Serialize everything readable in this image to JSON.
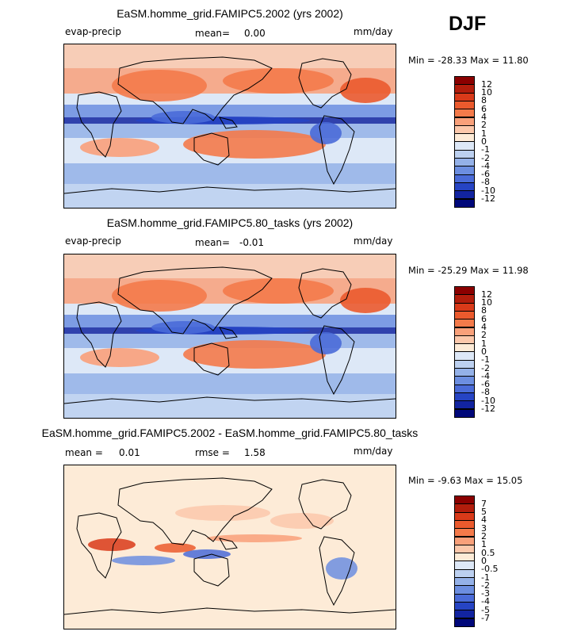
{
  "season": "DJF",
  "panels": [
    {
      "title": "EaSM.homme_grid.FAMIPC5.2002 (yrs 2002)",
      "left_label": "evap-precip",
      "mean_label": "mean=",
      "mean_value": "0.00",
      "units": "mm/day",
      "min_label": "Min =",
      "min_value": "-28.33",
      "max_label": "Max =",
      "max_value": "11.80",
      "colorbar_labels": [
        "12",
        "10",
        "8",
        "6",
        "4",
        "2",
        "1",
        "0",
        "-1",
        "-2",
        "-4",
        "-6",
        "-8",
        "-10",
        "-12"
      ],
      "colorbar_colors": [
        "#8b0000",
        "#b21d0c",
        "#d93a19",
        "#eb5a2d",
        "#f47a4a",
        "#f9a07a",
        "#fcc8ab",
        "#fdebd7",
        "#dde8f7",
        "#bcd0f0",
        "#94b1e8",
        "#6c8ee0",
        "#4a6bd8",
        "#2644c4",
        "#1224a0",
        "#00087a"
      ]
    },
    {
      "title": "EaSM.homme_grid.FAMIPC5.80_tasks (yrs 2002)",
      "left_label": "evap-precip",
      "mean_label": "mean=",
      "mean_value": "-0.01",
      "units": "mm/day",
      "min_label": "Min =",
      "min_value": "-25.29",
      "max_label": "Max =",
      "max_value": "11.98",
      "colorbar_labels": [
        "12",
        "10",
        "8",
        "6",
        "4",
        "2",
        "1",
        "0",
        "-1",
        "-2",
        "-4",
        "-6",
        "-8",
        "-10",
        "-12"
      ],
      "colorbar_colors": [
        "#8b0000",
        "#b21d0c",
        "#d93a19",
        "#eb5a2d",
        "#f47a4a",
        "#f9a07a",
        "#fcc8ab",
        "#fdebd7",
        "#dde8f7",
        "#bcd0f0",
        "#94b1e8",
        "#6c8ee0",
        "#4a6bd8",
        "#2644c4",
        "#1224a0",
        "#00087a"
      ]
    },
    {
      "title": "EaSM.homme_grid.FAMIPC5.2002 - EaSM.homme_grid.FAMIPC5.80_tasks",
      "mean_label": "mean =",
      "mean_value": "0.01",
      "rmse_label": "rmse =",
      "rmse_value": "1.58",
      "units": "mm/day",
      "min_label": "Min =",
      "min_value": "-9.63",
      "max_label": "Max =",
      "max_value": "15.05",
      "colorbar_labels": [
        "7",
        "5",
        "4",
        "3",
        "2",
        "1",
        "0.5",
        "0",
        "-0.5",
        "-1",
        "-2",
        "-3",
        "-4",
        "-5",
        "-7"
      ],
      "colorbar_colors": [
        "#8b0000",
        "#b21d0c",
        "#d93a19",
        "#eb5a2d",
        "#f47a4a",
        "#f9a07a",
        "#fcc8ab",
        "#fdebd7",
        "#dde8f7",
        "#bcd0f0",
        "#94b1e8",
        "#6c8ee0",
        "#4a6bd8",
        "#2644c4",
        "#1224a0",
        "#00087a"
      ]
    }
  ],
  "chart_data": {
    "type": "heatmap",
    "title": "DJF",
    "variable": "evap-precip",
    "units": "mm/day",
    "maps": [
      {
        "name": "EaSM.homme_grid.FAMIPC5.2002 (yrs 2002)",
        "mean": 0.0,
        "min": -28.33,
        "max": 11.8,
        "levels": [
          -12,
          -10,
          -8,
          -6,
          -4,
          -2,
          -1,
          0,
          1,
          2,
          4,
          6,
          8,
          10,
          12
        ]
      },
      {
        "name": "EaSM.homme_grid.FAMIPC5.80_tasks (yrs 2002)",
        "mean": -0.01,
        "min": -25.29,
        "max": 11.98,
        "levels": [
          -12,
          -10,
          -8,
          -6,
          -4,
          -2,
          -1,
          0,
          1,
          2,
          4,
          6,
          8,
          10,
          12
        ]
      },
      {
        "name": "EaSM.homme_grid.FAMIPC5.2002 - EaSM.homme_grid.FAMIPC5.80_tasks",
        "mean": 0.01,
        "rmse": 1.58,
        "min": -9.63,
        "max": 15.05,
        "levels": [
          -7,
          -5,
          -4,
          -3,
          -2,
          -1,
          -0.5,
          0,
          0.5,
          1,
          2,
          3,
          4,
          5,
          7
        ]
      }
    ]
  }
}
